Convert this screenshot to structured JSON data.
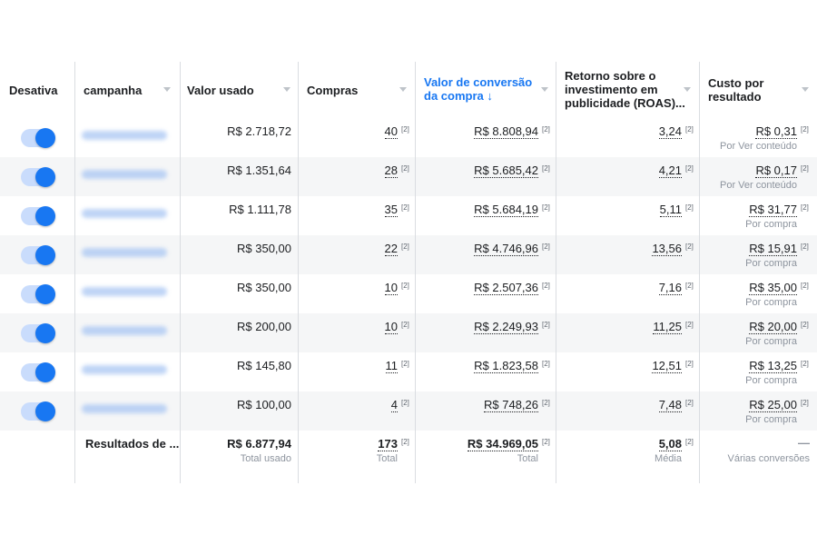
{
  "columns": {
    "toggle": "Desativa",
    "campaign": "campanha",
    "spend": "Valor usado",
    "purchases": "Compras",
    "conv_value": [
      "Valor de conversão",
      "da compra ↓"
    ],
    "roas": [
      "Retorno sobre o",
      "investimento em",
      "publicidade (ROAS)..."
    ],
    "cost": [
      "Custo por",
      "resultado"
    ]
  },
  "note_marker": "[2]",
  "rows": [
    {
      "active": true,
      "spend": "R$ 2.718,72",
      "purchases": "40",
      "conv_value": "R$ 8.808,94",
      "roas": "3,24",
      "cost": "R$ 0,31",
      "cost_type": "Por Ver conteúdo"
    },
    {
      "active": true,
      "spend": "R$ 1.351,64",
      "purchases": "28",
      "conv_value": "R$ 5.685,42",
      "roas": "4,21",
      "cost": "R$ 0,17",
      "cost_type": "Por Ver conteúdo"
    },
    {
      "active": true,
      "spend": "R$ 1.111,78",
      "purchases": "35",
      "conv_value": "R$ 5.684,19",
      "roas": "5,11",
      "cost": "R$ 31,77",
      "cost_type": "Por compra"
    },
    {
      "active": true,
      "spend": "R$ 350,00",
      "purchases": "22",
      "conv_value": "R$ 4.746,96",
      "roas": "13,56",
      "cost": "R$ 15,91",
      "cost_type": "Por compra"
    },
    {
      "active": true,
      "spend": "R$ 350,00",
      "purchases": "10",
      "conv_value": "R$ 2.507,36",
      "roas": "7,16",
      "cost": "R$ 35,00",
      "cost_type": "Por compra"
    },
    {
      "active": true,
      "spend": "R$ 200,00",
      "purchases": "10",
      "conv_value": "R$ 2.249,93",
      "roas": "11,25",
      "cost": "R$ 20,00",
      "cost_type": "Por compra"
    },
    {
      "active": true,
      "spend": "R$ 145,80",
      "purchases": "11",
      "conv_value": "R$ 1.823,58",
      "roas": "12,51",
      "cost": "R$ 13,25",
      "cost_type": "Por compra"
    },
    {
      "active": true,
      "spend": "R$ 100,00",
      "purchases": "4",
      "conv_value": "R$ 748,26",
      "roas": "7,48",
      "cost": "R$ 25,00",
      "cost_type": "Por compra"
    }
  ],
  "totals": {
    "label": "Resultados de ...",
    "spend": "R$ 6.877,94",
    "spend_sub": "Total usado",
    "purchases": "173",
    "purchases_sub": "Total",
    "conv_value": "R$ 34.969,05",
    "conv_value_sub": "Total",
    "roas": "5,08",
    "roas_sub": "Média",
    "cost": "—",
    "cost_sub": "Várias conversões"
  },
  "colors": {
    "accent": "#1877f2",
    "toggle_track": "#c9dcfc",
    "row_alt": "#f5f6f7",
    "grid": "#dadde1"
  }
}
